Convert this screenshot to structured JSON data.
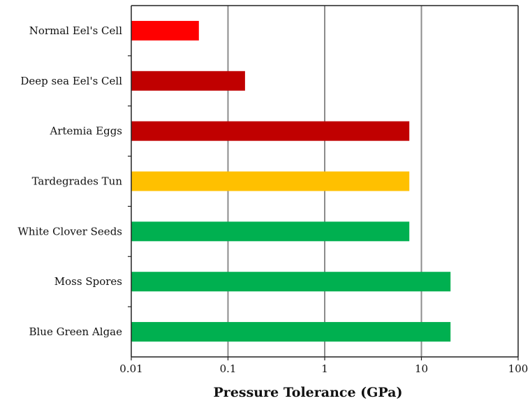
{
  "chart_data": {
    "type": "bar",
    "orientation": "horizontal",
    "xscale": "log",
    "xlim": [
      0.01,
      100
    ],
    "xticks": [
      "0.01",
      "0.1",
      "1",
      "10",
      "100"
    ],
    "xlabel": "Pressure Tolerance (GPa)",
    "ylabel": "",
    "title": "",
    "grid": "vertical",
    "legend": "none",
    "categories": [
      "Normal Eel's Cell",
      "Deep sea Eel's Cell",
      "Artemia Eggs",
      "Tardegrades Tun",
      "White Clover Seeds",
      "Moss Spores",
      "Blue Green Algae"
    ],
    "values": [
      0.05,
      0.15,
      7.5,
      7.5,
      7.5,
      20,
      20
    ],
    "colors": [
      "#ff0000",
      "#c00000",
      "#c00000",
      "#ffc000",
      "#00b050",
      "#00b050",
      "#00b050"
    ]
  }
}
